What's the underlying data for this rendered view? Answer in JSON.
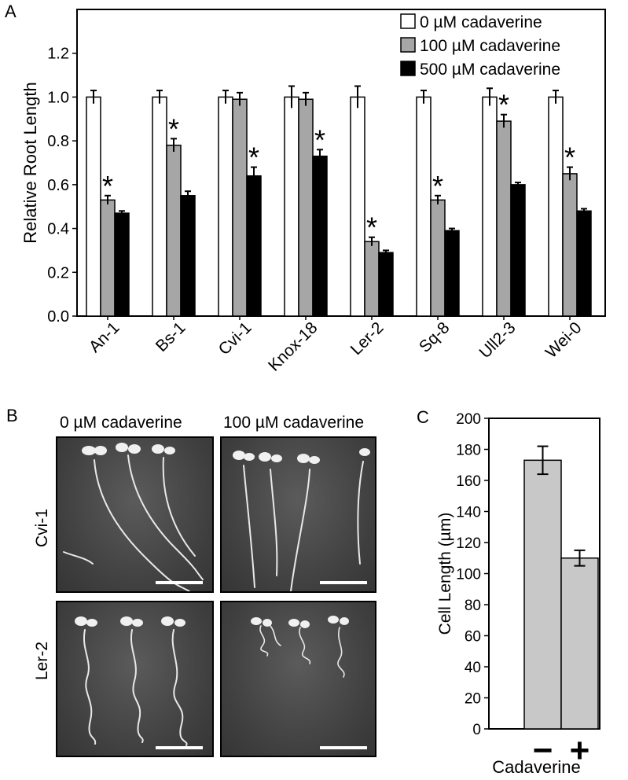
{
  "panels": {
    "A": "A",
    "B": "B",
    "C": "C"
  },
  "panel_b": {
    "column_labels": [
      "0 µM cadaverine",
      "100 µM cadaverine"
    ],
    "row_labels": [
      "Cvi-1",
      "Ler-2"
    ]
  },
  "chart_data": [
    {
      "type": "bar",
      "panel": "A",
      "ylabel": "Relative Root Length",
      "ylim": [
        0,
        1.4
      ],
      "yticks": [
        "0.0",
        "0.2",
        "0.4",
        "0.6",
        "0.8",
        "1.0",
        "1.2"
      ],
      "categories": [
        "An-1",
        "Bs-1",
        "Cvi-1",
        "Knox-18",
        "Ler-2",
        "Sq-8",
        "Ull2-3",
        "Wei-0"
      ],
      "legend_position": "top-right",
      "series": [
        {
          "name": "0 µM cadaverine",
          "color": "#ffffff",
          "values": [
            1.0,
            1.0,
            1.0,
            1.0,
            1.0,
            1.0,
            1.0,
            1.0
          ],
          "errors": [
            0.03,
            0.03,
            0.03,
            0.05,
            0.05,
            0.03,
            0.04,
            0.03
          ]
        },
        {
          "name": "100 µM cadaverine",
          "color": "#a6a6a6",
          "values": [
            0.53,
            0.78,
            0.99,
            0.99,
            0.34,
            0.53,
            0.89,
            0.65
          ],
          "errors": [
            0.02,
            0.03,
            0.03,
            0.03,
            0.02,
            0.02,
            0.03,
            0.03
          ]
        },
        {
          "name": "500 µM cadaverine",
          "color": "#000000",
          "values": [
            0.47,
            0.55,
            0.64,
            0.73,
            0.29,
            0.39,
            0.6,
            0.48
          ],
          "errors": [
            0.01,
            0.02,
            0.04,
            0.03,
            0.01,
            0.01,
            0.01,
            0.01
          ]
        }
      ],
      "significance": {
        "label": "*",
        "series": [
          "100 µM cadaverine",
          "100 µM cadaverine",
          "500 µM cadaverine",
          "500 µM cadaverine",
          "100 µM cadaverine",
          "100 µM cadaverine",
          "100 µM cadaverine",
          "100 µM cadaverine"
        ]
      }
    },
    {
      "type": "bar",
      "panel": "C",
      "ylabel": "Cell Length (µm)",
      "xlabel": "Cadaverine",
      "ylim": [
        0,
        200
      ],
      "yticks": [
        "0",
        "20",
        "40",
        "60",
        "80",
        "100",
        "120",
        "140",
        "160",
        "180",
        "200"
      ],
      "categories": [
        "−",
        "+"
      ],
      "values": [
        173,
        110
      ],
      "errors": [
        9,
        5
      ],
      "color": "#c8c8c8"
    }
  ]
}
